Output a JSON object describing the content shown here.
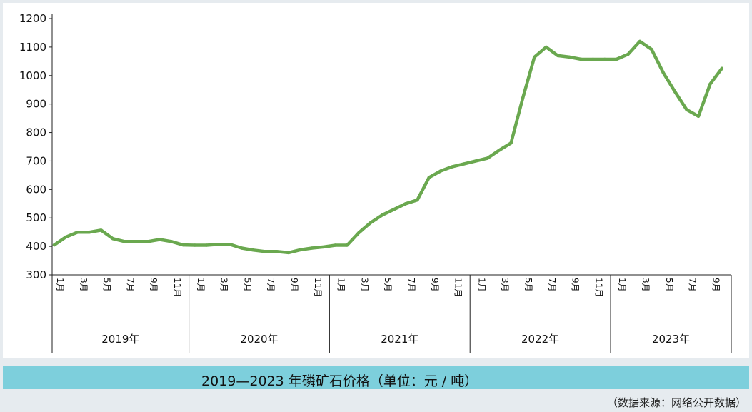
{
  "colors": {
    "line": "#6aa84f",
    "caption_bg": "#7dcfdc",
    "page_bg": "#e6ebef"
  },
  "caption": "2019—2023 年磷矿石价格（单位：元 / 吨）",
  "source": "（数据来源：网络公开数据）",
  "chart_data": {
    "type": "line",
    "title": "2019—2023 年磷矿石价格（单位：元 / 吨）",
    "xlabel": "",
    "ylabel": "元/吨",
    "ylim": [
      300,
      1200
    ],
    "yticks": [
      "1200",
      "1100",
      "1000",
      "900",
      "800",
      "700",
      "600",
      "500",
      "400",
      "300"
    ],
    "groups": [
      {
        "year": "2019年",
        "months": [
          "1月",
          "3月",
          "5月",
          "7月",
          "9月",
          "11月"
        ]
      },
      {
        "year": "2020年",
        "months": [
          "1月",
          "3月",
          "5月",
          "7月",
          "9月",
          "11月"
        ]
      },
      {
        "year": "2021年",
        "months": [
          "1月",
          "3月",
          "5月",
          "7月",
          "9月",
          "11月"
        ]
      },
      {
        "year": "2022年",
        "months": [
          "1月",
          "3月",
          "5月",
          "7月",
          "9月",
          "11月"
        ]
      },
      {
        "year": "2023年",
        "months": [
          "1月",
          "3月",
          "5月",
          "7月",
          "9月"
        ]
      }
    ],
    "series": [
      {
        "name": "磷矿石价格",
        "values": [
          405,
          433,
          450,
          450,
          457,
          427,
          417,
          417,
          417,
          424,
          417,
          405,
          404,
          404,
          407,
          407,
          394,
          387,
          382,
          382,
          378,
          388,
          394,
          398,
          404,
          404,
          448,
          483,
          510,
          530,
          550,
          563,
          642,
          665,
          680,
          690,
          700,
          710,
          738,
          763,
          920,
          1065,
          1100,
          1070,
          1065,
          1057,
          1057,
          1057,
          1057,
          1075,
          1120,
          1092,
          1010,
          943,
          880,
          857,
          970,
          1025
        ]
      }
    ]
  }
}
